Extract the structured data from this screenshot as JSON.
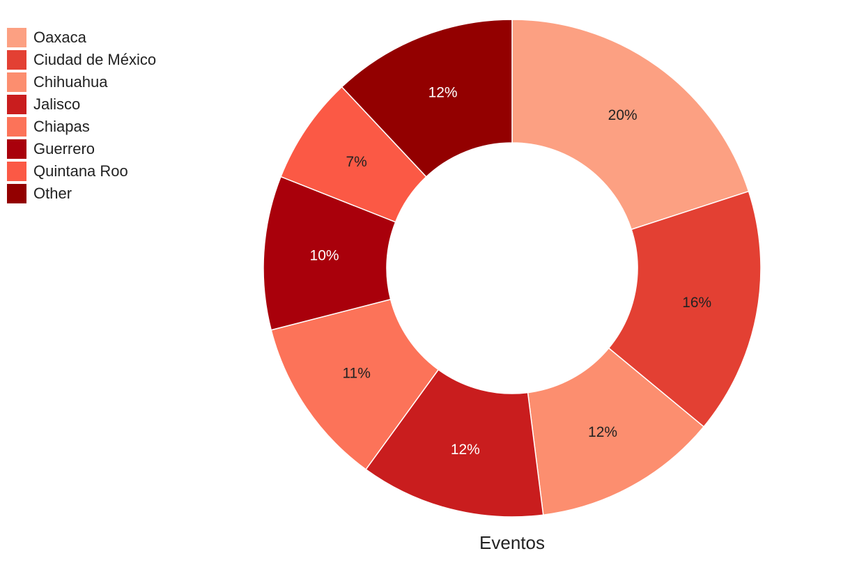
{
  "chart_data": {
    "type": "pie",
    "donut": true,
    "xlabel": "Eventos",
    "legend_position": "top-left",
    "slices": [
      {
        "label": "Oaxaca",
        "value": 20,
        "value_label": "20%",
        "color": "#fca082",
        "label_color": "#222222"
      },
      {
        "label": "Ciudad de México",
        "value": 16,
        "value_label": "16%",
        "color": "#e34033",
        "label_color": "#222222"
      },
      {
        "label": "Chihuahua",
        "value": 12,
        "value_label": "12%",
        "color": "#fc8e6f",
        "label_color": "#222222"
      },
      {
        "label": "Jalisco",
        "value": 12,
        "value_label": "12%",
        "color": "#c91d1e",
        "label_color": "#ffffff"
      },
      {
        "label": "Chiapas",
        "value": 11,
        "value_label": "11%",
        "color": "#fc7359",
        "label_color": "#222222"
      },
      {
        "label": "Guerrero",
        "value": 10,
        "value_label": "10%",
        "color": "#a9000b",
        "label_color": "#ffffff"
      },
      {
        "label": "Quintana Roo",
        "value": 7,
        "value_label": "7%",
        "color": "#fb5945",
        "label_color": "#222222"
      },
      {
        "label": "Other",
        "value": 12,
        "value_label": "12%",
        "color": "#930000",
        "label_color": "#ffffff"
      }
    ]
  }
}
